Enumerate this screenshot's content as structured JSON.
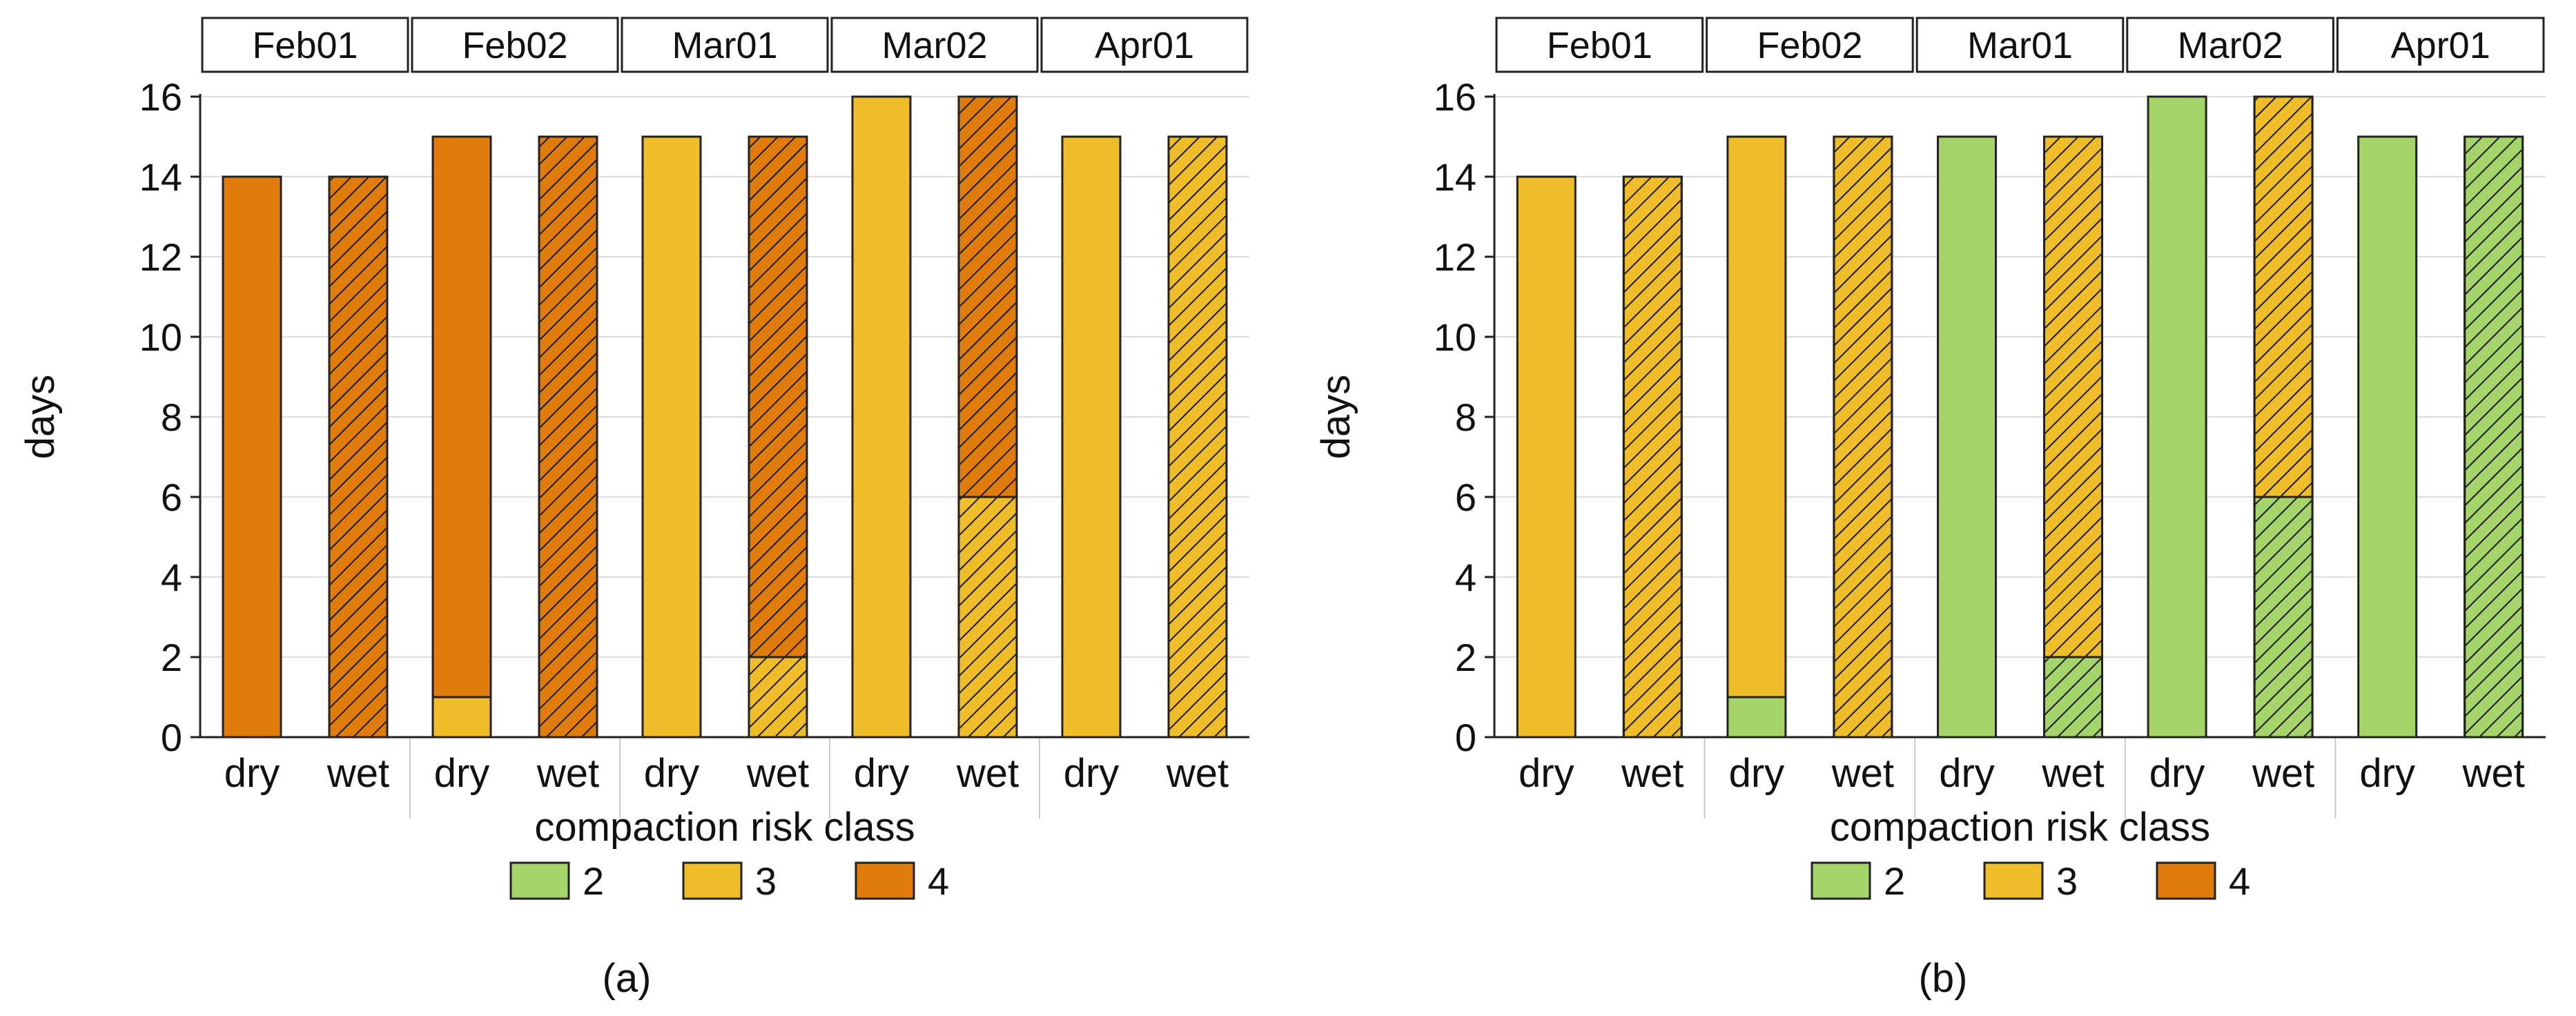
{
  "figure": {
    "panel_labels": [
      "(a)",
      "(b)"
    ]
  },
  "colors": {
    "class_2": "#a5d46b",
    "class_3": "#f0bd2a",
    "class_4": "#e07c0c",
    "axis": "#222222",
    "grid": "#dddddd",
    "hatch": "#1a1a1a"
  },
  "chart_data": [
    {
      "type": "bar",
      "subtype": "stacked, faceted",
      "panel_label": "(a)",
      "facets": [
        "Feb01",
        "Feb02",
        "Mar01",
        "Mar02",
        "Apr01"
      ],
      "categories": [
        "dry",
        "wet"
      ],
      "hatched_category": "wet",
      "xlabel": "compaction risk class",
      "ylabel": "days",
      "ylim": [
        0,
        16
      ],
      "yticks": [
        0,
        2,
        4,
        6,
        8,
        10,
        12,
        14,
        16
      ],
      "grid": true,
      "legend": {
        "placement": "bottom",
        "entries": [
          "2",
          "3",
          "4"
        ]
      },
      "series": [
        {
          "name": "2",
          "color_key": "class_2",
          "values": [
            [
              0,
              0
            ],
            [
              0,
              0
            ],
            [
              0,
              0
            ],
            [
              0,
              0
            ],
            [
              0,
              0
            ]
          ]
        },
        {
          "name": "3",
          "color_key": "class_3",
          "values": [
            [
              0,
              0
            ],
            [
              1,
              0
            ],
            [
              15,
              2
            ],
            [
              16,
              6
            ],
            [
              15,
              15
            ]
          ]
        },
        {
          "name": "4",
          "color_key": "class_4",
          "values": [
            [
              14,
              14
            ],
            [
              14,
              15
            ],
            [
              0,
              13
            ],
            [
              0,
              10
            ],
            [
              0,
              0
            ]
          ]
        }
      ]
    },
    {
      "type": "bar",
      "subtype": "stacked, faceted",
      "panel_label": "(b)",
      "facets": [
        "Feb01",
        "Feb02",
        "Mar01",
        "Mar02",
        "Apr01"
      ],
      "categories": [
        "dry",
        "wet"
      ],
      "hatched_category": "wet",
      "xlabel": "compaction risk class",
      "ylabel": "days",
      "ylim": [
        0,
        16
      ],
      "yticks": [
        0,
        2,
        4,
        6,
        8,
        10,
        12,
        14,
        16
      ],
      "grid": true,
      "legend": {
        "placement": "bottom",
        "entries": [
          "2",
          "3",
          "4"
        ]
      },
      "series": [
        {
          "name": "2",
          "color_key": "class_2",
          "values": [
            [
              0,
              0
            ],
            [
              1,
              0
            ],
            [
              15,
              2
            ],
            [
              16,
              6
            ],
            [
              15,
              15
            ]
          ]
        },
        {
          "name": "3",
          "color_key": "class_3",
          "values": [
            [
              14,
              14
            ],
            [
              14,
              15
            ],
            [
              0,
              13
            ],
            [
              0,
              10
            ],
            [
              0,
              0
            ]
          ]
        },
        {
          "name": "4",
          "color_key": "class_4",
          "values": [
            [
              0,
              0
            ],
            [
              0,
              0
            ],
            [
              0,
              0
            ],
            [
              0,
              0
            ],
            [
              0,
              0
            ]
          ]
        }
      ]
    }
  ]
}
